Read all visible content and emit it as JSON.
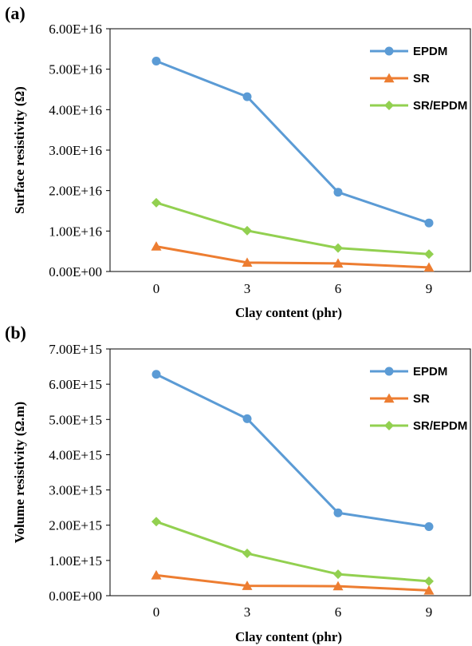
{
  "panel_labels": [
    "(a)",
    "(b)"
  ],
  "chart_data": [
    {
      "type": "line",
      "panel_label": "(a)",
      "xlabel": "Clay content (phr)",
      "ylabel": "Surface resistivity (Ω)",
      "categories": [
        "0",
        "3",
        "6",
        "9"
      ],
      "ylim": [
        0,
        6e+16
      ],
      "yticks": [
        "0.00E+00",
        "1.00E+16",
        "2.00E+16",
        "3.00E+16",
        "4.00E+16",
        "5.00E+16",
        "6.00E+16"
      ],
      "grid": false,
      "legend_position": "top-right",
      "series": [
        {
          "name": "EPDM",
          "marker": "circle",
          "color": "#5B9BD5",
          "values": [
            5.2e+16,
            4.32e+16,
            1.96e+16,
            1.2e+16
          ]
        },
        {
          "name": "SR",
          "marker": "triangle",
          "color": "#ED7D31",
          "values": [
            6200000000000000.0,
            2200000000000000.0,
            2000000000000000.0,
            1000000000000000.0
          ]
        },
        {
          "name": "SR/EPDM",
          "marker": "diamond",
          "color": "#92D050",
          "values": [
            1.7e+16,
            1.01e+16,
            5800000000000000.0,
            4300000000000000.0
          ]
        }
      ]
    },
    {
      "type": "line",
      "panel_label": "(b)",
      "xlabel": "Clay content (phr)",
      "ylabel": "Volume resistivity (Ω.m)",
      "categories": [
        "0",
        "3",
        "6",
        "9"
      ],
      "ylim": [
        0,
        7000000000000000.0
      ],
      "yticks": [
        "0.00E+00",
        "1.00E+15",
        "2.00E+15",
        "3.00E+15",
        "4.00E+15",
        "5.00E+15",
        "6.00E+15",
        "7.00E+15"
      ],
      "grid": false,
      "legend_position": "top-right",
      "series": [
        {
          "name": "EPDM",
          "marker": "circle",
          "color": "#5B9BD5",
          "values": [
            6280000000000000.0,
            5020000000000000.0,
            2350000000000000.0,
            1960000000000000.0
          ]
        },
        {
          "name": "SR",
          "marker": "triangle",
          "color": "#ED7D31",
          "values": [
            580000000000000.0,
            280000000000000.0,
            270000000000000.0,
            150000000000000.0
          ]
        },
        {
          "name": "SR/EPDM",
          "marker": "diamond",
          "color": "#92D050",
          "values": [
            2100000000000000.0,
            1200000000000000.0,
            610000000000000.0,
            410000000000000.0
          ]
        }
      ]
    }
  ]
}
